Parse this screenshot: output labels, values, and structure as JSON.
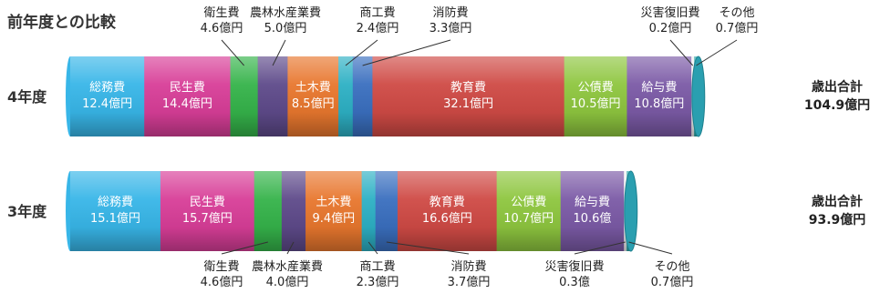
{
  "chart_data": {
    "type": "bar",
    "orientation": "horizontal",
    "stacked": true,
    "title": "前年度との比較",
    "unit": "億円",
    "grid": false,
    "legend": "none",
    "rows": [
      {
        "label": "4年度",
        "total_label": "歳出合計",
        "total_value": "104.9億円",
        "segments": [
          {
            "name": "総務費",
            "value": 12.4,
            "display": "12.4億円",
            "color": "#38b6e8",
            "label_pos": "inside"
          },
          {
            "name": "民生費",
            "value": 14.4,
            "display": "14.4億円",
            "color": "#d83e98",
            "label_pos": "inside"
          },
          {
            "name": "衛生費",
            "value": 4.6,
            "display": "4.6億円",
            "color": "#35b34a",
            "label_pos": "above"
          },
          {
            "name": "農林水産業費",
            "value": 5.0,
            "display": "5.0億円",
            "color": "#5e4a8a",
            "label_pos": "above"
          },
          {
            "name": "土木費",
            "value": 8.5,
            "display": "8.5億円",
            "color": "#e8772e",
            "label_pos": "inside"
          },
          {
            "name": "商工費",
            "value": 2.4,
            "display": "2.4億円",
            "color": "#2db0c4",
            "label_pos": "above"
          },
          {
            "name": "消防費",
            "value": 3.3,
            "display": "3.3億円",
            "color": "#3a6fbf",
            "label_pos": "above"
          },
          {
            "name": "教育費",
            "value": 32.1,
            "display": "32.1億円",
            "color": "#cf4a45",
            "label_pos": "inside"
          },
          {
            "name": "公債費",
            "value": 10.5,
            "display": "10.5億円",
            "color": "#8ec63f",
            "label_pos": "inside"
          },
          {
            "name": "給与費",
            "value": 10.8,
            "display": "10.8億円",
            "color": "#7b5aa6",
            "label_pos": "inside"
          },
          {
            "name": "災害復旧費",
            "value": 0.2,
            "display": "0.2億円",
            "color": "#f0f0f0",
            "label_pos": "above"
          },
          {
            "name": "その他",
            "value": 0.7,
            "display": "0.7億円",
            "color": "#2aa8a8",
            "label_pos": "above"
          }
        ]
      },
      {
        "label": "3年度",
        "total_label": "歳出合計",
        "total_value": "93.9億円",
        "segments": [
          {
            "name": "総務費",
            "value": 15.1,
            "display": "15.1億円",
            "color": "#38b6e8",
            "label_pos": "inside"
          },
          {
            "name": "民生費",
            "value": 15.7,
            "display": "15.7億円",
            "color": "#d83e98",
            "label_pos": "inside"
          },
          {
            "name": "衛生費",
            "value": 4.6,
            "display": "4.6億円",
            "color": "#35b34a",
            "label_pos": "below"
          },
          {
            "name": "農林水産業費",
            "value": 4.0,
            "display": "4.0億円",
            "color": "#5e4a8a",
            "label_pos": "below"
          },
          {
            "name": "土木費",
            "value": 9.4,
            "display": "9.4億円",
            "color": "#e8772e",
            "label_pos": "inside"
          },
          {
            "name": "商工費",
            "value": 2.3,
            "display": "2.3億円",
            "color": "#2db0c4",
            "label_pos": "below"
          },
          {
            "name": "消防費",
            "value": 3.7,
            "display": "3.7億円",
            "color": "#3a6fbf",
            "label_pos": "below"
          },
          {
            "name": "教育費",
            "value": 16.6,
            "display": "16.6億円",
            "color": "#cf4a45",
            "label_pos": "inside"
          },
          {
            "name": "公債費",
            "value": 10.7,
            "display": "10.7億円",
            "color": "#8ec63f",
            "label_pos": "inside"
          },
          {
            "name": "給与費",
            "value": 10.6,
            "display": "10.6億",
            "color": "#7b5aa6",
            "label_pos": "inside"
          },
          {
            "name": "災害復旧費",
            "value": 0.3,
            "display": "0.3億",
            "color": "#f0f0f0",
            "label_pos": "below"
          },
          {
            "name": "その他",
            "value": 0.7,
            "display": "0.7億円",
            "color": "#2aa8a8",
            "label_pos": "below"
          }
        ]
      }
    ]
  }
}
